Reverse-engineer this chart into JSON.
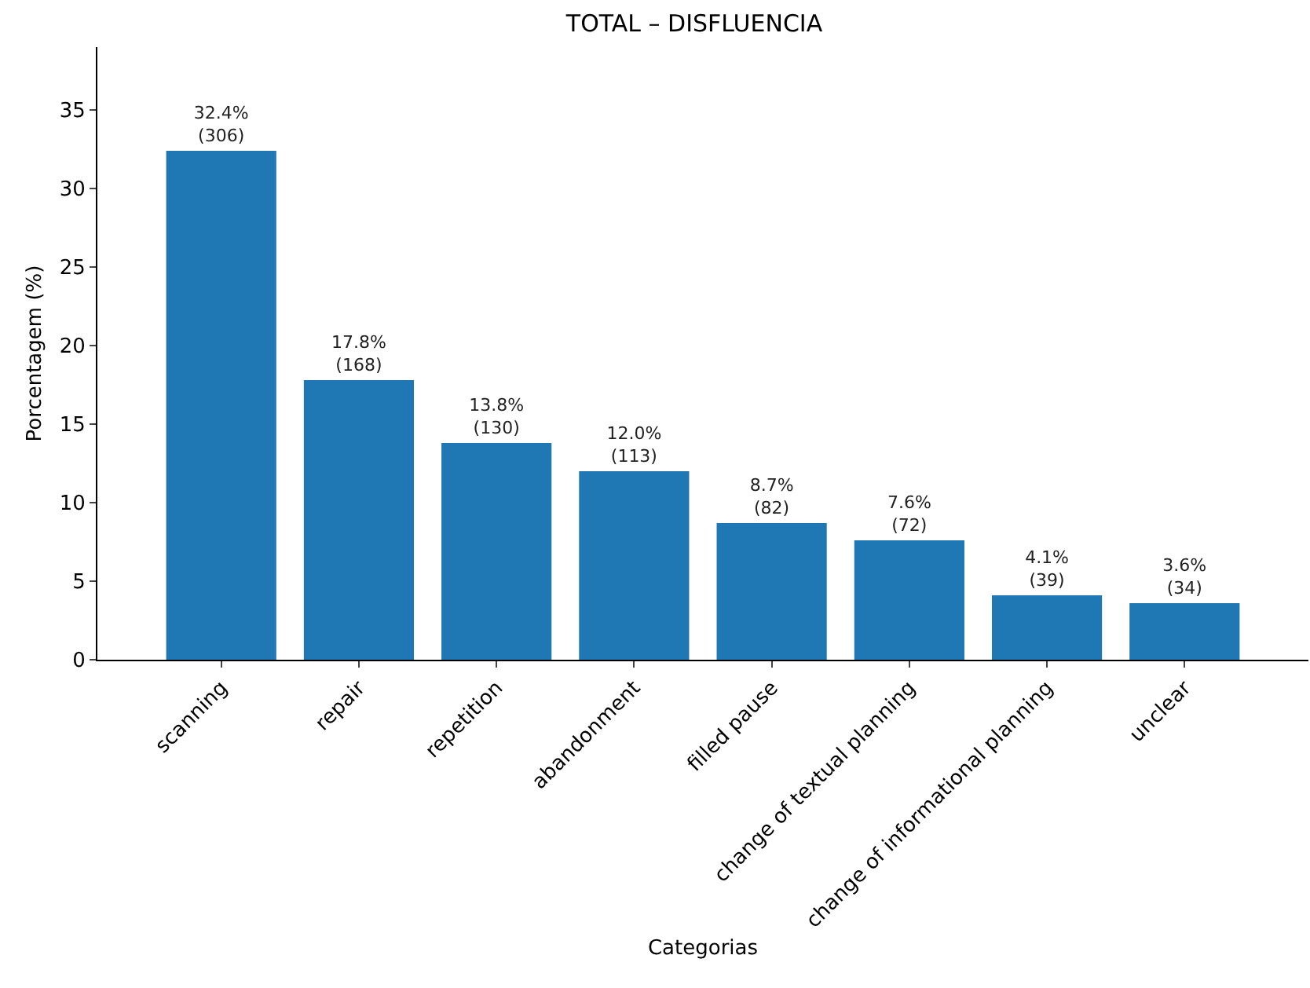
{
  "chart_data": {
    "type": "bar",
    "title": "TOTAL – DISFLUENCIA",
    "xlabel": "Categorias",
    "ylabel": "Porcentagem (%)",
    "categories": [
      "scanning",
      "repair",
      "repetition",
      "abandonment",
      "filled pause",
      "change of textual planning",
      "change of informational planning",
      "unclear"
    ],
    "values": [
      32.4,
      17.8,
      13.8,
      12.0,
      8.7,
      7.6,
      4.1,
      3.6
    ],
    "value_labels": [
      "32.4%\n(306)",
      "17.8%\n(168)",
      "13.8%\n(130)",
      "12.0%\n(113)",
      "8.7%\n(82)",
      "7.6%\n(72)",
      "4.1%\n(39)",
      "3.6%\n(34)"
    ],
    "color": "#1f77b4",
    "ylim": [
      0,
      39
    ],
    "yticks": [
      0,
      5,
      10,
      15,
      20,
      25,
      30,
      35
    ],
    "grid": false,
    "legend": false
  }
}
